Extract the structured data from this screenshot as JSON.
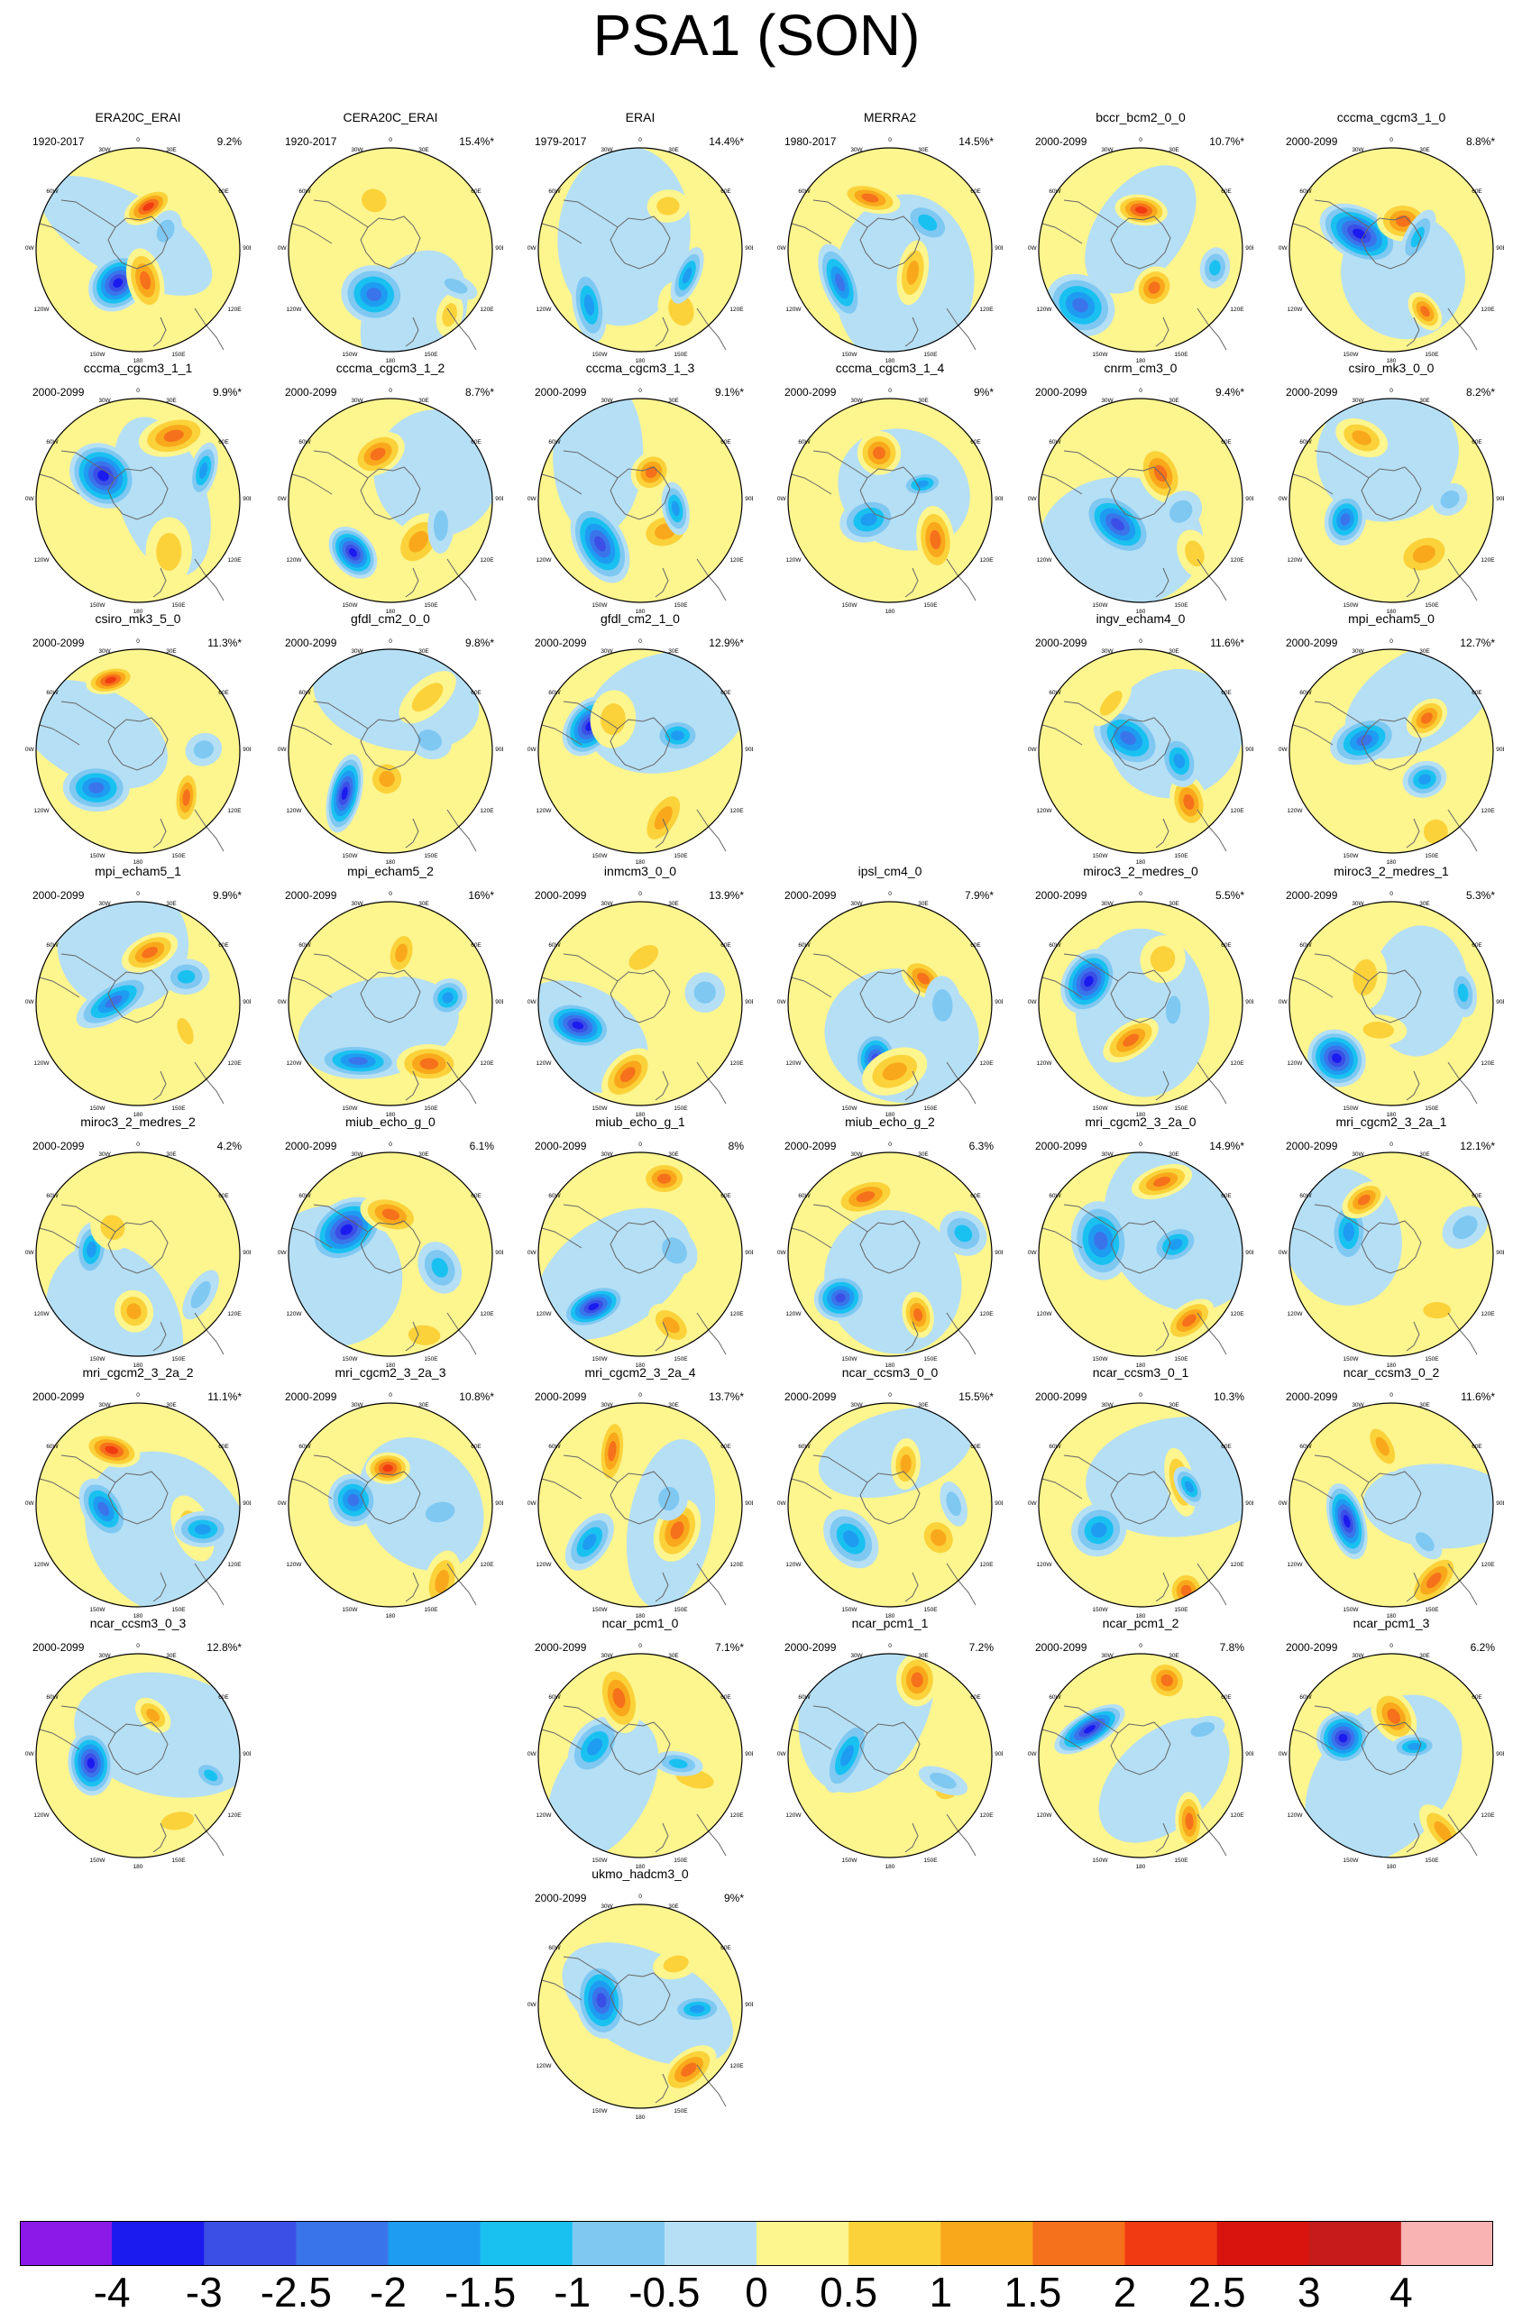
{
  "title": "PSA1 (SON)",
  "map_labels": {
    "lon_top": "0",
    "lon_30w": "30W",
    "lon_30e": "30E",
    "lon_60w": "60W",
    "lon_60e": "60E",
    "lon_90w": "90W",
    "lon_90e": "90E",
    "lon_120w": "120W",
    "lon_120e": "120E",
    "lon_150w": "150W",
    "lon_150e": "150E",
    "lon_180": "180"
  },
  "colorbar": {
    "labels": [
      "-4",
      "-3",
      "-2.5",
      "-2",
      "-1.5",
      "-1",
      "-0.5",
      "0",
      "0.5",
      "1",
      "1.5",
      "2",
      "2.5",
      "3",
      "4"
    ],
    "colors": [
      "#8b1ae8",
      "#1b1bef",
      "#3b4fe6",
      "#3a74ea",
      "#1e9cf2",
      "#19c1f0",
      "#7ec8f2",
      "#b5dff5",
      "#fdf58e",
      "#fbd23a",
      "#f9a81b",
      "#f6711b",
      "#f03b12",
      "#d9140f",
      "#c61b1b",
      "#f9b3b3"
    ]
  },
  "panels": [
    {
      "name": "ERA20C_ERAI",
      "period": "1920-2017",
      "pct": "9.2%"
    },
    {
      "name": "CERA20C_ERAI",
      "period": "1920-2017",
      "pct": "15.4%*"
    },
    {
      "name": "ERAI",
      "period": "1979-2017",
      "pct": "14.4%*"
    },
    {
      "name": "MERRA2",
      "period": "1980-2017",
      "pct": "14.5%*"
    },
    {
      "name": "bccr_bcm2_0_0",
      "period": "2000-2099",
      "pct": "10.7%*"
    },
    {
      "name": "cccma_cgcm3_1_0",
      "period": "2000-2099",
      "pct": "8.8%*"
    },
    {
      "name": "cccma_cgcm3_1_1",
      "period": "2000-2099",
      "pct": "9.9%*"
    },
    {
      "name": "cccma_cgcm3_1_2",
      "period": "2000-2099",
      "pct": "8.7%*"
    },
    {
      "name": "cccma_cgcm3_1_3",
      "period": "2000-2099",
      "pct": "9.1%*"
    },
    {
      "name": "cccma_cgcm3_1_4",
      "period": "2000-2099",
      "pct": "9%*"
    },
    {
      "name": "cnrm_cm3_0",
      "period": "2000-2099",
      "pct": "9.4%*"
    },
    {
      "name": "csiro_mk3_0_0",
      "period": "2000-2099",
      "pct": "8.2%*"
    },
    {
      "name": "csiro_mk3_5_0",
      "period": "2000-2099",
      "pct": "11.3%*"
    },
    {
      "name": "gfdl_cm2_0_0",
      "period": "2000-2099",
      "pct": "9.8%*"
    },
    {
      "name": "gfdl_cm2_1_0",
      "period": "2000-2099",
      "pct": "12.9%*"
    },
    {
      "name": "ingv_echam4_0",
      "period": "2000-2099",
      "pct": "11.6%*"
    },
    {
      "name": "mpi_echam5_0",
      "period": "2000-2099",
      "pct": "12.7%*"
    },
    {
      "name": "mpi_echam5_1",
      "period": "2000-2099",
      "pct": "9.9%*"
    },
    {
      "name": "mpi_echam5_2",
      "period": "2000-2099",
      "pct": "16%*"
    },
    {
      "name": "inmcm3_0_0",
      "period": "2000-2099",
      "pct": "13.9%*"
    },
    {
      "name": "ipsl_cm4_0",
      "period": "2000-2099",
      "pct": "7.9%*"
    },
    {
      "name": "miroc3_2_medres_0",
      "period": "2000-2099",
      "pct": "5.5%*"
    },
    {
      "name": "miroc3_2_medres_1",
      "period": "2000-2099",
      "pct": "5.3%*"
    },
    {
      "name": "miroc3_2_medres_2",
      "period": "2000-2099",
      "pct": "4.2%"
    },
    {
      "name": "miub_echo_g_0",
      "period": "2000-2099",
      "pct": "6.1%"
    },
    {
      "name": "miub_echo_g_1",
      "period": "2000-2099",
      "pct": "8%"
    },
    {
      "name": "miub_echo_g_2",
      "period": "2000-2099",
      "pct": "6.3%"
    },
    {
      "name": "mri_cgcm2_3_2a_0",
      "period": "2000-2099",
      "pct": "14.9%*"
    },
    {
      "name": "mri_cgcm2_3_2a_1",
      "period": "2000-2099",
      "pct": "12.1%*"
    },
    {
      "name": "mri_cgcm2_3_2a_2",
      "period": "2000-2099",
      "pct": "11.1%*"
    },
    {
      "name": "mri_cgcm2_3_2a_3",
      "period": "2000-2099",
      "pct": "10.8%*"
    },
    {
      "name": "mri_cgcm2_3_2a_4",
      "period": "2000-2099",
      "pct": "13.7%*"
    },
    {
      "name": "ncar_ccsm3_0_0",
      "period": "2000-2099",
      "pct": "15.5%*"
    },
    {
      "name": "ncar_ccsm3_0_1",
      "period": "2000-2099",
      "pct": "10.3%"
    },
    {
      "name": "ncar_ccsm3_0_2",
      "period": "2000-2099",
      "pct": "11.6%*"
    },
    {
      "name": "ncar_ccsm3_0_3",
      "period": "2000-2099",
      "pct": "12.8%*"
    },
    {
      "name": "ncar_pcm1_0",
      "period": "2000-2099",
      "pct": "7.1%*"
    },
    {
      "name": "ncar_pcm1_1",
      "period": "2000-2099",
      "pct": "7.2%"
    },
    {
      "name": "ncar_pcm1_2",
      "period": "2000-2099",
      "pct": "7.8%"
    },
    {
      "name": "ncar_pcm1_3",
      "period": "2000-2099",
      "pct": "6.2%"
    },
    {
      "name": "ukmo_hadcm3_0",
      "period": "2000-2099",
      "pct": "9%*"
    }
  ]
}
